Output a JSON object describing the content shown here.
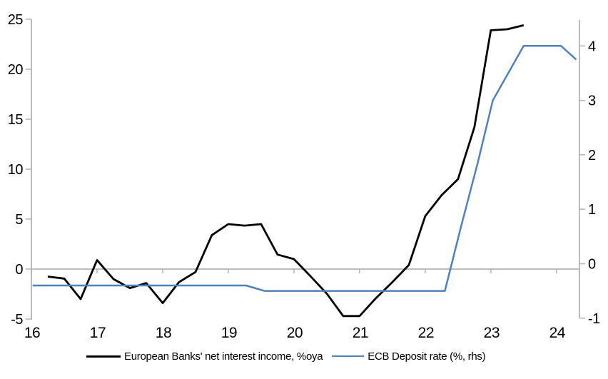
{
  "figure": {
    "background": "#ffffff",
    "axis_line_color": "#b3b3b3",
    "zero_line_color": "#b3b3b3",
    "tick_label_color": "#000000"
  },
  "legend": {
    "items": [
      {
        "label": "European Banks' net interest income, %oya",
        "color": "#000000"
      },
      {
        "label": "ECB Deposit rate (%, rhs)",
        "color": "#4f81bd"
      }
    ]
  },
  "chart_data": {
    "type": "line",
    "title": "",
    "xlabel": "",
    "ylabel_left": "",
    "ylabel_right": "",
    "grid": false,
    "legend_position": "bottom",
    "x_axis": {
      "min": 16,
      "max": 24.35,
      "ticks": [
        16,
        17,
        18,
        19,
        20,
        21,
        22,
        23,
        24
      ]
    },
    "left_axis": {
      "min": -5,
      "max": 25,
      "ticks": [
        25,
        20,
        15,
        10,
        5,
        0,
        -5
      ]
    },
    "right_axis": {
      "min": -1,
      "max": 4.5,
      "ticks": [
        4,
        3,
        2,
        1,
        0,
        -1
      ]
    },
    "series": [
      {
        "name": "European Banks' net interest income, %oya",
        "axis": "left",
        "color": "#000000",
        "stroke_width": 2.8,
        "points": [
          [
            16.25,
            -0.75
          ],
          [
            16.5,
            -0.95
          ],
          [
            16.75,
            -3.0
          ],
          [
            17.0,
            0.9
          ],
          [
            17.25,
            -1.0
          ],
          [
            17.5,
            -1.9
          ],
          [
            17.75,
            -1.4
          ],
          [
            18.0,
            -3.4
          ],
          [
            18.25,
            -1.3
          ],
          [
            18.5,
            -0.3
          ],
          [
            18.75,
            3.4
          ],
          [
            19.0,
            4.5
          ],
          [
            19.25,
            4.35
          ],
          [
            19.5,
            4.5
          ],
          [
            19.75,
            1.45
          ],
          [
            20.0,
            1.0
          ],
          [
            20.25,
            -0.7
          ],
          [
            20.5,
            -2.45
          ],
          [
            20.75,
            -4.7
          ],
          [
            21.0,
            -4.7
          ],
          [
            21.25,
            -2.9
          ],
          [
            21.5,
            -1.3
          ],
          [
            21.75,
            0.4
          ],
          [
            22.0,
            5.3
          ],
          [
            22.25,
            7.4
          ],
          [
            22.5,
            9.0
          ],
          [
            22.75,
            14.2
          ],
          [
            23.0,
            23.9
          ],
          [
            23.25,
            24.0
          ],
          [
            23.5,
            24.4
          ]
        ]
      },
      {
        "name": "ECB Deposit rate (%, rhs)",
        "axis": "right",
        "color": "#4f81bd",
        "stroke_width": 2.5,
        "points": [
          [
            16.02,
            -0.4
          ],
          [
            19.27,
            -0.4
          ],
          [
            19.55,
            -0.5
          ],
          [
            22.3,
            -0.5
          ],
          [
            22.55,
            0.7
          ],
          [
            22.8,
            1.85
          ],
          [
            23.03,
            3.0
          ],
          [
            23.5,
            4.0
          ],
          [
            24.07,
            4.0
          ],
          [
            24.3,
            3.75
          ]
        ]
      }
    ]
  }
}
